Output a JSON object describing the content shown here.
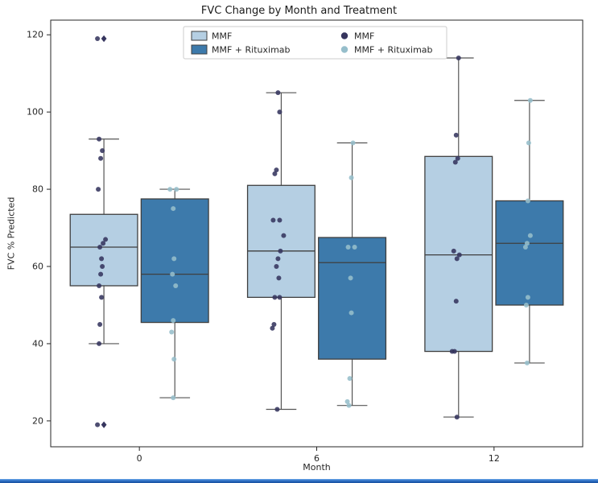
{
  "chart_data": {
    "type": "boxplot",
    "title": "FVC Change by Month and Treatment",
    "xlabel": "Month",
    "ylabel": "FVC % Predicted",
    "categories": [
      "0",
      "6",
      "12"
    ],
    "ylim": [
      13.3,
      123.8
    ],
    "yticks": [
      20,
      40,
      60,
      80,
      100,
      120
    ],
    "grid": false,
    "legend_position": "upper center",
    "axis_color": "#262626",
    "edge_color": "#3f3f3f",
    "whisker_color": "#555555",
    "series": [
      {
        "name": "MMF",
        "box_color": "#b5cfe3",
        "point_color": "#36355e",
        "boxes": [
          {
            "category": "0",
            "whislo": 40,
            "q1": 55,
            "med": 65,
            "q3": 73.5,
            "whishi": 93,
            "outliers": [
              119,
              19
            ],
            "points": [
              [
                119,
                -8
              ],
              [
                93,
                -6
              ],
              [
                90,
                -2
              ],
              [
                88,
                -4
              ],
              [
                80,
                -7
              ],
              [
                67,
                2
              ],
              [
                66,
                -1
              ],
              [
                65,
                -5
              ],
              [
                62,
                -3
              ],
              [
                60,
                -2
              ],
              [
                58,
                -4
              ],
              [
                55,
                -6
              ],
              [
                52,
                -3
              ],
              [
                45,
                -5
              ],
              [
                40,
                -6
              ],
              [
                19,
                -8
              ]
            ]
          },
          {
            "category": "6",
            "whislo": 23,
            "q1": 52,
            "med": 64,
            "q3": 81,
            "whishi": 105,
            "outliers": [],
            "points": [
              [
                105,
                -4
              ],
              [
                100,
                -2
              ],
              [
                85,
                -6
              ],
              [
                84,
                -8
              ],
              [
                72,
                -10
              ],
              [
                72,
                -2
              ],
              [
                68,
                3
              ],
              [
                64,
                -1
              ],
              [
                62,
                -4
              ],
              [
                60,
                -6
              ],
              [
                57,
                -3
              ],
              [
                52,
                -8
              ],
              [
                52,
                -2
              ],
              [
                45,
                -9
              ],
              [
                44,
                -11
              ],
              [
                23,
                -5
              ]
            ]
          },
          {
            "category": "12",
            "whislo": 21,
            "q1": 38,
            "med": 63,
            "q3": 88.5,
            "whishi": 114,
            "outliers": [],
            "points": [
              [
                114,
                0
              ],
              [
                94,
                -3
              ],
              [
                88,
                -1
              ],
              [
                87,
                -4
              ],
              [
                64,
                -6
              ],
              [
                63,
                1
              ],
              [
                62,
                -2
              ],
              [
                51,
                -3
              ],
              [
                38,
                -5
              ],
              [
                38,
                -8
              ],
              [
                21,
                -2
              ]
            ]
          }
        ]
      },
      {
        "name": "MMF + Rituximab",
        "box_color": "#3d7aab",
        "point_color": "#96becb",
        "boxes": [
          {
            "category": "0",
            "whislo": 26,
            "q1": 45.5,
            "med": 58,
            "q3": 77.5,
            "whishi": 80,
            "outliers": [],
            "points": [
              [
                80,
                -6
              ],
              [
                80,
                2
              ],
              [
                75,
                -2
              ],
              [
                62,
                -1
              ],
              [
                58,
                -3
              ],
              [
                55,
                1
              ],
              [
                46,
                -2
              ],
              [
                43,
                -4
              ],
              [
                36,
                -1
              ],
              [
                26,
                -2
              ]
            ]
          },
          {
            "category": "6",
            "whislo": 24,
            "q1": 36,
            "med": 61,
            "q3": 67.5,
            "whishi": 92,
            "outliers": [],
            "points": [
              [
                92,
                1
              ],
              [
                83,
                -1
              ],
              [
                65,
                -5
              ],
              [
                65,
                3
              ],
              [
                57,
                -2
              ],
              [
                48,
                -1
              ],
              [
                31,
                -3
              ],
              [
                25,
                -6
              ],
              [
                24,
                -4
              ]
            ]
          },
          {
            "category": "12",
            "whislo": 35,
            "q1": 50,
            "med": 66,
            "q3": 77,
            "whishi": 103,
            "outliers": [],
            "points": [
              [
                103,
                1
              ],
              [
                92,
                -1
              ],
              [
                77,
                -2
              ],
              [
                68,
                1
              ],
              [
                66,
                -3
              ],
              [
                65,
                -5
              ],
              [
                52,
                -2
              ],
              [
                50,
                -4
              ],
              [
                35,
                -3
              ]
            ]
          }
        ]
      }
    ],
    "legend": {
      "box_entries": [
        "MMF",
        "MMF + Rituximab"
      ],
      "marker_entries": [
        "MMF",
        "MMF + Rituximab"
      ]
    }
  }
}
